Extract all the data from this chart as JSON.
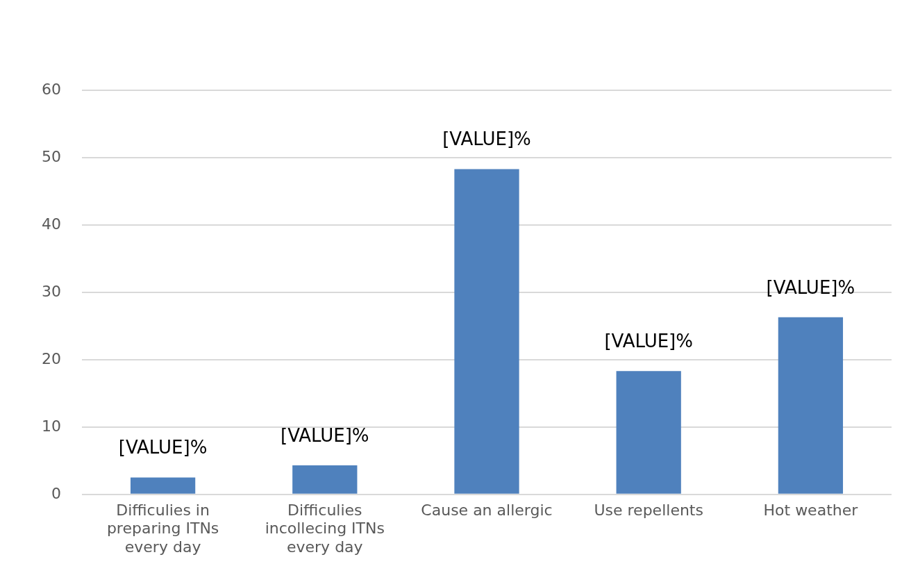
{
  "chart_data": {
    "type": "bar",
    "categories": [
      "Difficulies in\npreparing ITNs\nevery day",
      "Difficulies\nincollecing ITNs\nevery day",
      "Cause an allergic",
      "Use repellents",
      "Hot weather"
    ],
    "values": [
      2.5,
      4.3,
      48.3,
      18.3,
      26.3
    ],
    "value_labels": [
      "[VALUE]%",
      "[VALUE]%",
      "[VALUE]%",
      "[VALUE]%",
      "[VALUE]%"
    ],
    "color": "#4f81bd",
    "ylim": [
      0,
      60
    ],
    "yticks": [
      0,
      10,
      20,
      30,
      40,
      50,
      60
    ],
    "grid": "y"
  }
}
